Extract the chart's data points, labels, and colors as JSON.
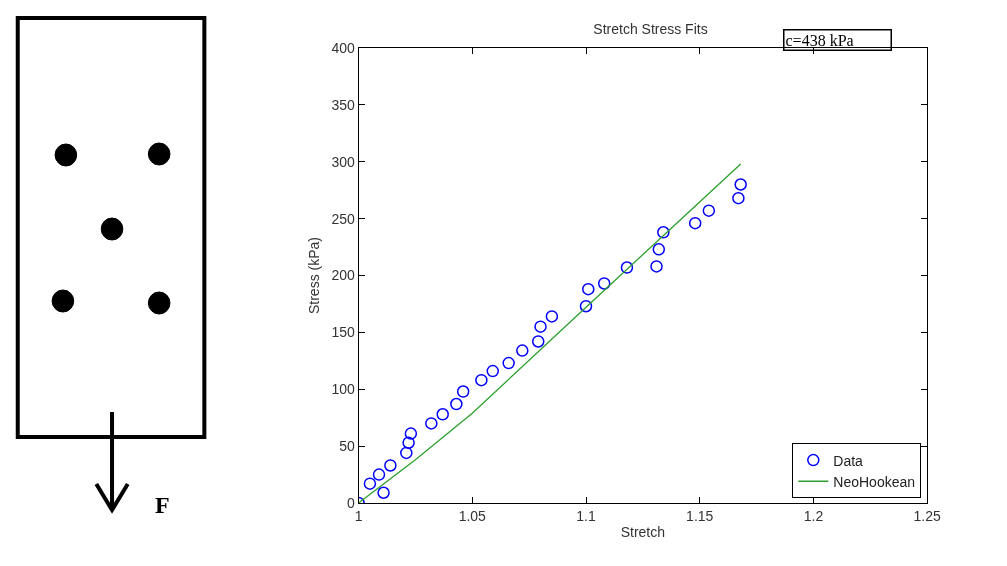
{
  "chart_data": {
    "type": "scatter",
    "title": "Stretch Stress Fits",
    "xlabel": "Stretch",
    "ylabel": "Stress (kPa)",
    "xlim": [
      1,
      1.25
    ],
    "xticks": [
      1,
      1.05,
      1.1,
      1.15,
      1.2,
      1.25
    ],
    "ylim": [
      0,
      400
    ],
    "yticks": [
      0,
      50,
      100,
      150,
      200,
      250,
      300,
      350,
      400
    ],
    "grid": false,
    "legend": "bottom right",
    "annotations": [
      "c=438 kPa",
      "F"
    ],
    "series": [
      {
        "name": "Data",
        "marker": "circle",
        "color": "#0000ff",
        "x": [
          1.0,
          1.005,
          1.009,
          1.011,
          1.014,
          1.021,
          1.022,
          1.023,
          1.032,
          1.037,
          1.043,
          1.046,
          1.054,
          1.059,
          1.066,
          1.072,
          1.079,
          1.08,
          1.085,
          1.1,
          1.101,
          1.108,
          1.118,
          1.131,
          1.132,
          1.134,
          1.148,
          1.154,
          1.167,
          1.168
        ],
        "values": [
          0,
          17,
          25,
          9,
          33,
          44,
          53,
          61,
          70,
          78,
          87,
          98,
          108,
          116,
          123,
          134,
          142,
          155,
          164,
          173,
          188,
          193,
          207,
          208,
          223,
          238,
          246,
          257,
          268,
          280
        ]
      },
      {
        "name": "NeoHookean",
        "type": "line",
        "marker": "none",
        "color": "#2ca02c",
        "x": [
          1.0,
          1.025,
          1.05,
          1.1,
          1.135,
          1.168
        ],
        "values": [
          0,
          38,
          79,
          172,
          237,
          298
        ]
      }
    ]
  }
}
